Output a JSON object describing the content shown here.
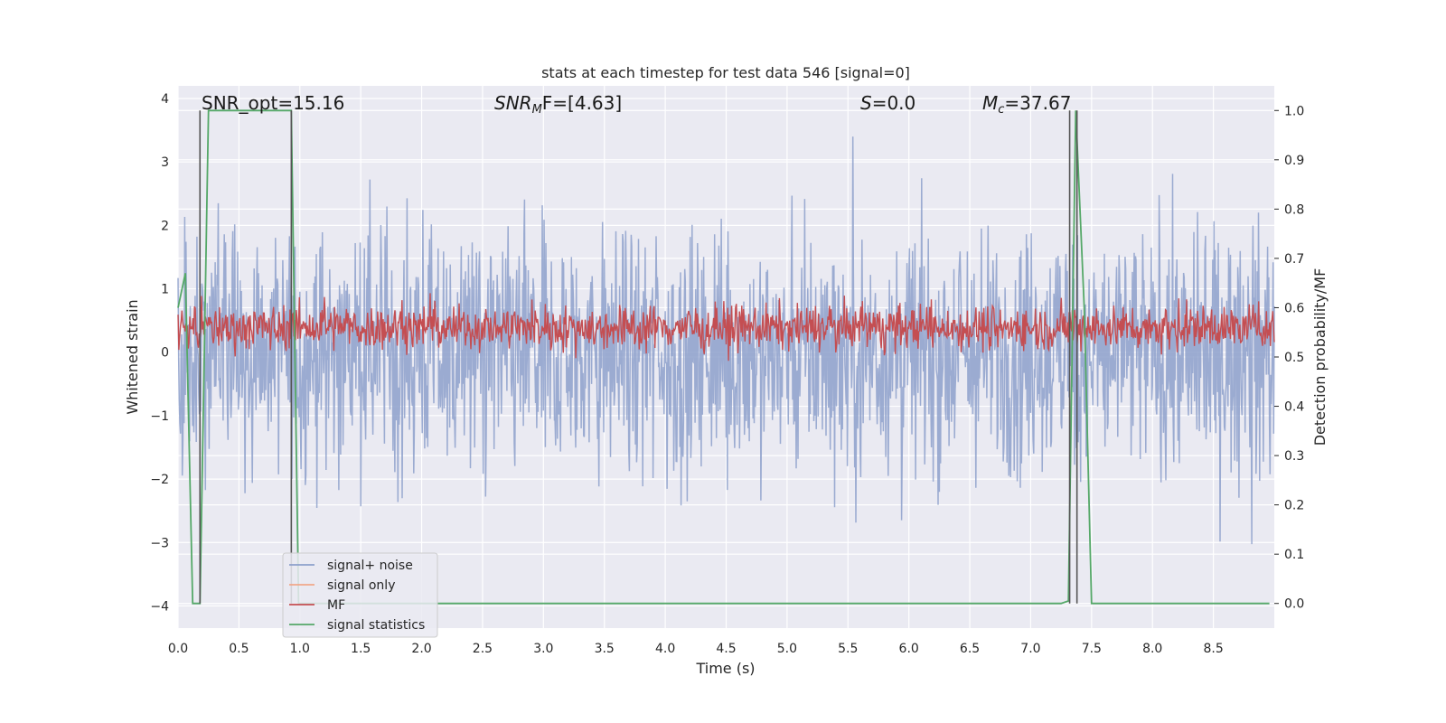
{
  "chart_data": {
    "type": "line",
    "title": "stats at each timestep for test data 546 [signal=0]",
    "xlabel": "Time (s)",
    "ylabel": "Whitened strain",
    "y2label": "Detection probability/MF",
    "xlim": [
      0.0,
      9.0
    ],
    "ylim": [
      -4.35,
      4.2
    ],
    "y2lim": [
      -0.05,
      1.05
    ],
    "xticks": [
      "0.0",
      "0.5",
      "1.0",
      "1.5",
      "2.0",
      "2.5",
      "3.0",
      "3.5",
      "4.0",
      "4.5",
      "5.0",
      "5.5",
      "6.0",
      "6.5",
      "7.0",
      "7.5",
      "8.0",
      "8.5"
    ],
    "yticks": [
      "4",
      "3",
      "2",
      "1",
      "0",
      "−1",
      "−2",
      "−3",
      "−4"
    ],
    "y2ticks": [
      "1.0",
      "0.9",
      "0.8",
      "0.7",
      "0.6",
      "0.5",
      "0.4",
      "0.3",
      "0.2",
      "0.1",
      "0.0"
    ],
    "grid": true,
    "legend_position": "lower-left",
    "annotations": {
      "snr_opt": "SNR_opt=15.16",
      "snr_mf_main": "SNR",
      "snr_mf_sub": "M",
      "snr_mf_rest": "F=[4.63]",
      "s_var": "S",
      "s_rest": "=0.0",
      "mc_var": "M",
      "mc_sub": "c",
      "mc_rest": "=37.67"
    },
    "vlines_x": [
      0.18,
      0.93,
      7.32,
      7.38
    ],
    "series": [
      {
        "name": "signal+ noise",
        "color": "#8da0cb",
        "kind": "noise",
        "amplitude": "approx ±2.5 whitened strain, peaks to ±3.6",
        "x_range": [
          0.0,
          9.0
        ]
      },
      {
        "name": "signal only",
        "color": "#f0a78a",
        "kind": "flat",
        "x_range": [
          0.0,
          9.0
        ]
      },
      {
        "name": "MF",
        "color": "#c44e52",
        "kind": "noise",
        "approx_axis": "y2",
        "approx_range": [
          0.52,
          0.6
        ],
        "x_range": [
          0.0,
          9.0
        ]
      },
      {
        "name": "signal statistics",
        "color": "#55a868",
        "kind": "line",
        "axis": "y2",
        "x": [
          0.0,
          0.06,
          0.12,
          0.18,
          0.25,
          0.31,
          0.93,
          0.99,
          1.05,
          7.25,
          7.31,
          7.37,
          7.44,
          7.5,
          8.96
        ],
        "y": [
          0.6,
          0.67,
          0.0,
          0.0,
          1.0,
          1.0,
          1.0,
          0.0,
          0.0,
          0.0,
          0.005,
          1.0,
          0.6,
          0.0,
          0.0
        ]
      }
    ]
  }
}
